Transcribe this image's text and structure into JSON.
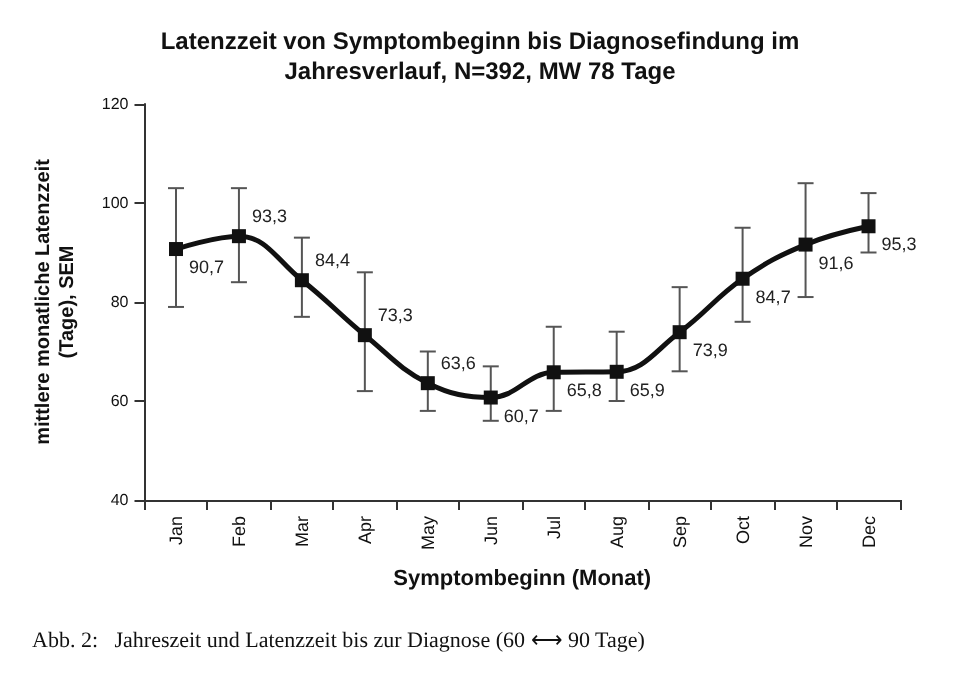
{
  "chart_data": {
    "type": "line",
    "title": "Latenzzeit von Symptombeginn bis Diagnosefindung im\nJahresverlauf, N=392, MW 78 Tage",
    "xlabel": "Symptombeginn (Monat)",
    "ylabel": "mittlere monatliche Latenzzeit\n(Tage), SEM",
    "categories": [
      "Jan",
      "Feb",
      "Mar",
      "Apr",
      "May",
      "Jun",
      "Jul",
      "Aug",
      "Sep",
      "Oct",
      "Nov",
      "Dec"
    ],
    "values": [
      90.7,
      93.3,
      84.4,
      73.3,
      63.6,
      60.7,
      65.8,
      65.9,
      73.9,
      84.7,
      91.6,
      95.3
    ],
    "value_labels": [
      "90,7",
      "93,3",
      "84,4",
      "73,3",
      "63,6",
      "60,7",
      "65,8",
      "65,9",
      "73,9",
      "84,7",
      "91,6",
      "95,3"
    ],
    "errors": [
      [
        79,
        103
      ],
      [
        84,
        103
      ],
      [
        77,
        93
      ],
      [
        62,
        86
      ],
      [
        58,
        70
      ],
      [
        56,
        67
      ],
      [
        58,
        75
      ],
      [
        60,
        74
      ],
      [
        66,
        83
      ],
      [
        76,
        95
      ],
      [
        81,
        104
      ],
      [
        90,
        102
      ]
    ],
    "color": "#111111",
    "marker": "square",
    "line_style": "solid",
    "ylim": [
      40,
      120
    ],
    "yticks": [
      40,
      60,
      80,
      100,
      120
    ],
    "grid": false,
    "annotations": [
      "Abb. 2:   Jahreszeit und Latenzzeit bis zur Diagnose (60 ⟷ 90 Tage)"
    ]
  }
}
